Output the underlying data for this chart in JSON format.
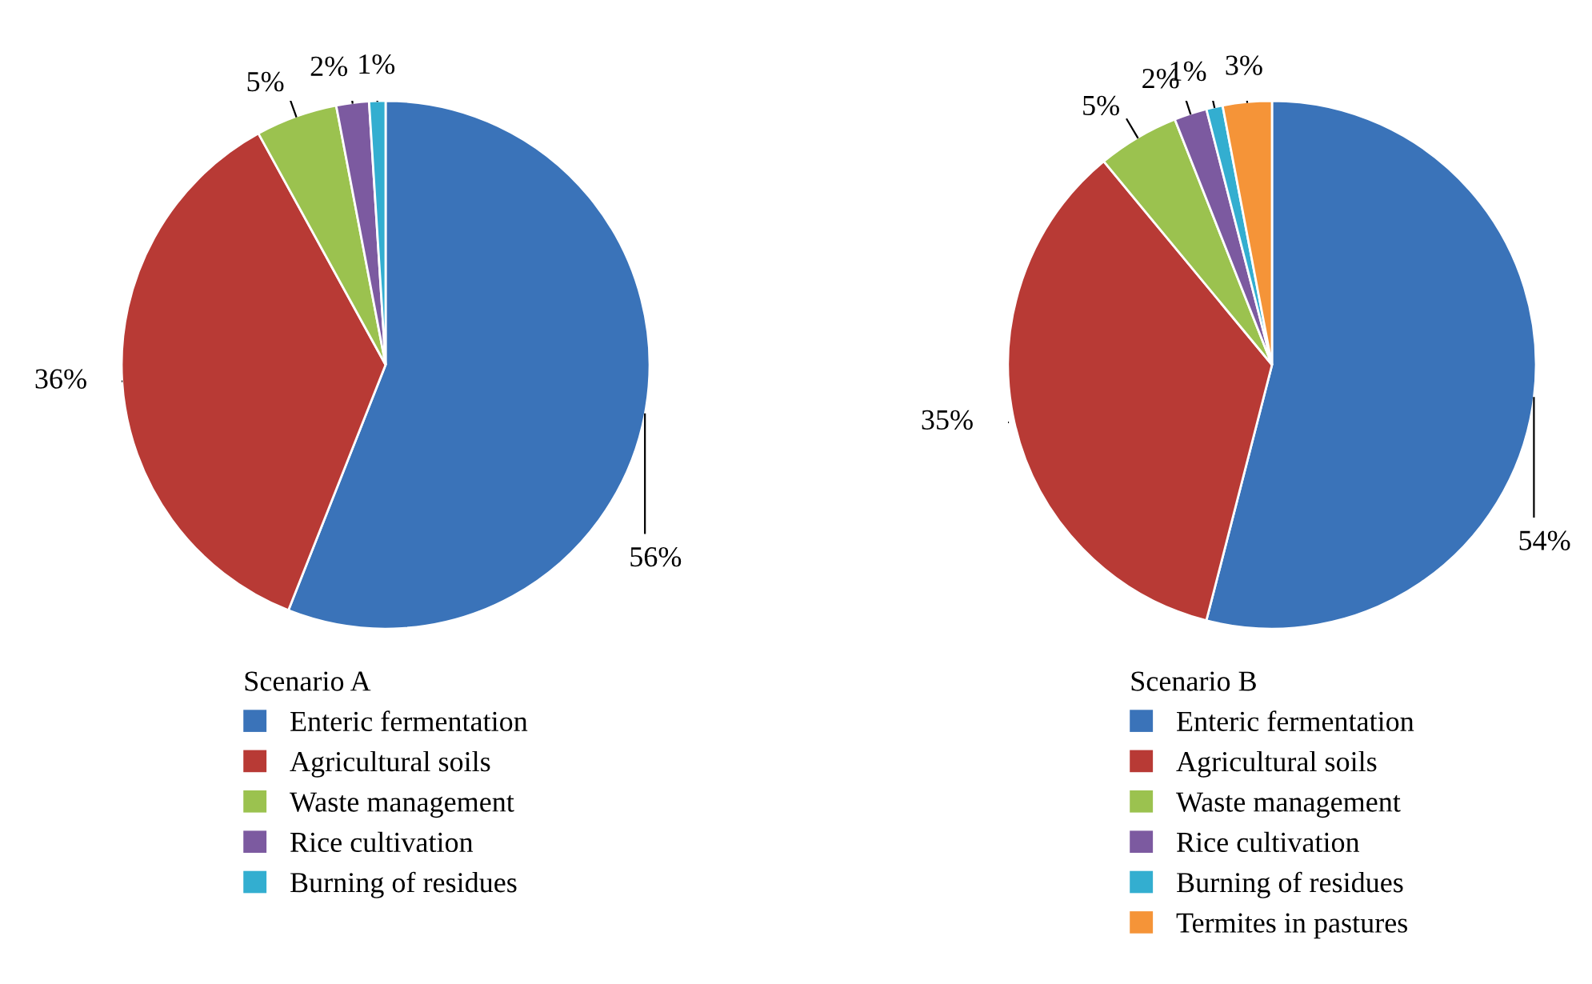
{
  "chart_data": [
    {
      "type": "pie",
      "legend_title": "Scenario A",
      "legend": "bottom",
      "categories": [
        "Enteric fermentation",
        "Agricultural soils",
        "Waste management",
        "Rice cultivation",
        "Burning of residues"
      ],
      "values": [
        56,
        36,
        5,
        2,
        1
      ],
      "value_labels": [
        "56%",
        "36%",
        "5%",
        "2%",
        "1%"
      ],
      "colors": [
        "#3a73b9",
        "#b83a35",
        "#9bc24f",
        "#7c5aa0",
        "#33aed0"
      ]
    },
    {
      "type": "pie",
      "legend_title": "Scenario B",
      "legend": "bottom",
      "categories": [
        "Enteric fermentation",
        "Agricultural soils",
        "Waste management",
        "Rice cultivation",
        "Burning of residues",
        "Termites in pastures"
      ],
      "values": [
        54,
        35,
        5,
        2,
        1,
        3
      ],
      "value_labels": [
        "54%",
        "35%",
        "5%",
        "2%",
        "1%",
        "3%"
      ],
      "colors": [
        "#3a73b9",
        "#b83a35",
        "#9bc24f",
        "#7c5aa0",
        "#33aed0",
        "#f59438"
      ]
    }
  ]
}
